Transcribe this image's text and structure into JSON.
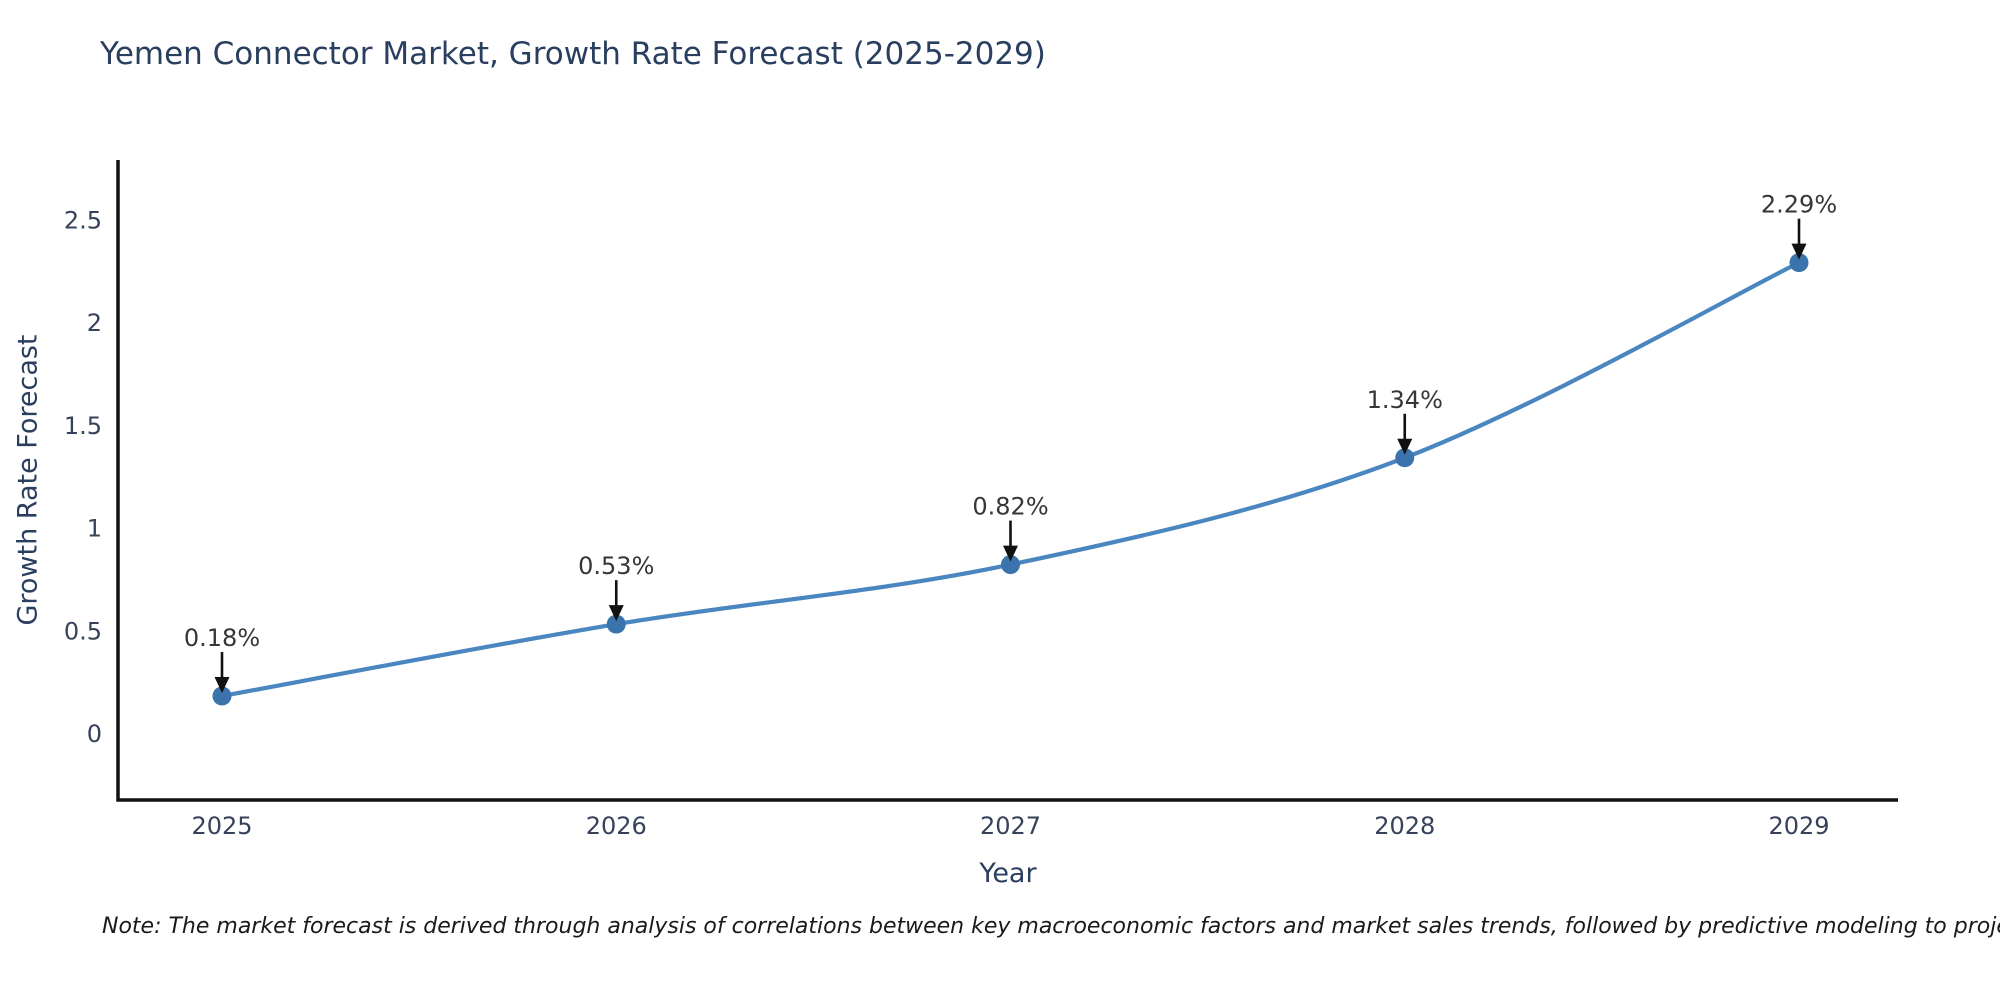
{
  "chart": {
    "note": "Note: The market forecast is derived through analysis of correlations between key macroeconomic factors and market sales trends, followed by predictive modeling to project future sales trends."
  },
  "chart_data": {
    "type": "line",
    "title": "Yemen Connector Market, Growth Rate Forecast (2025-2029)",
    "xlabel": "Year",
    "ylabel": "Growth Rate Forecast",
    "x": [
      2025,
      2026,
      2027,
      2028,
      2029
    ],
    "x_tick_labels": [
      "2025",
      "2026",
      "2027",
      "2028",
      "2029"
    ],
    "values": [
      0.18,
      0.53,
      0.82,
      1.34,
      2.29
    ],
    "point_labels": [
      "0.18%",
      "0.53%",
      "0.82%",
      "1.34%",
      "2.29%"
    ],
    "yticks": [
      0,
      0.5,
      1,
      1.5,
      2,
      2.5
    ],
    "ytick_labels": [
      "0",
      "0.5",
      "1",
      "1.5",
      "2",
      "2.5"
    ],
    "ylim": [
      -0.33,
      2.8
    ],
    "grid": false,
    "legend": "none",
    "colors": {
      "line": "#4a86c0",
      "marker": "#3b74ad",
      "axis": "#111111",
      "tick_text": "#36425a",
      "title_text": "#2a3f5f",
      "annotation_text": "#363636",
      "arrow": "#111111"
    }
  }
}
